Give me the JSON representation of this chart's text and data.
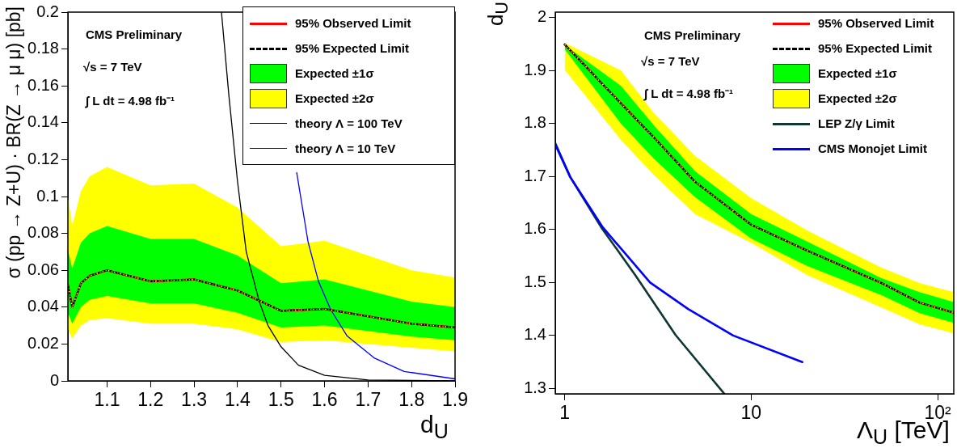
{
  "chart_data": [
    {
      "type": "line",
      "xlabel": "d$_{U}$",
      "ylabel": "σ (pp → Z+U) · BR(Z → μ μ) [pb]",
      "annotations": [
        "CMS Preliminary",
        "√s = 7 TeV",
        "∫ L dt = 4.98 fb⁻¹"
      ],
      "x": [
        1.01,
        1.02,
        1.04,
        1.06,
        1.1,
        1.2,
        1.3,
        1.4,
        1.5,
        1.6,
        1.8,
        1.9
      ],
      "xlim": [
        1.01,
        1.9
      ],
      "xticks": [
        1.1,
        1.2,
        1.3,
        1.4,
        1.5,
        1.6,
        1.7,
        1.8,
        1.9
      ],
      "ylim": [
        0,
        0.2
      ],
      "yticks": [
        0,
        0.02,
        0.04,
        0.06,
        0.08,
        0.1,
        0.12,
        0.14,
        0.16,
        0.18,
        0.2
      ],
      "grid": false,
      "legend": "top right",
      "marker": "none",
      "series": [
        {
          "name": "Expected ±2σ",
          "color": "#ffff00",
          "line_style": "dotted",
          "values": [
            0.052,
            0.04,
            0.053,
            0.057,
            0.06,
            0.054,
            0.055,
            0.049,
            0.038,
            0.039,
            0.031,
            0.029
          ],
          "lower": [
            0.028,
            0.023,
            0.03,
            0.033,
            0.034,
            0.031,
            0.031,
            0.028,
            0.021,
            0.022,
            0.018,
            0.016
          ],
          "upper": [
            0.1,
            0.084,
            0.103,
            0.111,
            0.116,
            0.106,
            0.107,
            0.094,
            0.073,
            0.076,
            0.06,
            0.056
          ]
        },
        {
          "name": "Expected ±1σ",
          "color": "#00ff00",
          "line_style": "dotted",
          "values": [
            0.052,
            0.04,
            0.053,
            0.057,
            0.06,
            0.054,
            0.055,
            0.049,
            0.038,
            0.039,
            0.031,
            0.029
          ],
          "lower": [
            0.037,
            0.031,
            0.04,
            0.044,
            0.046,
            0.042,
            0.042,
            0.037,
            0.029,
            0.03,
            0.024,
            0.022
          ],
          "upper": [
            0.071,
            0.061,
            0.075,
            0.08,
            0.084,
            0.077,
            0.077,
            0.068,
            0.053,
            0.055,
            0.043,
            0.04
          ]
        },
        {
          "name": "theory Λ = 100 TeV",
          "color": "#000000",
          "line_style": "solid",
          "x": [
            1.363,
            1.38,
            1.4,
            1.42,
            1.45,
            1.47,
            1.5,
            1.54,
            1.6,
            1.7,
            1.9
          ],
          "values": [
            0.2,
            0.155,
            0.108,
            0.07,
            0.043,
            0.03,
            0.0185,
            0.0085,
            0.003,
            0.0005,
            0
          ]
        },
        {
          "name": "theory Λ = 10 TeV",
          "color": "#0000ff",
          "line_style": "solid",
          "x": [
            1.536,
            1.562,
            1.586,
            1.614,
            1.652,
            1.715,
            1.783,
            1.9
          ],
          "values": [
            0.113,
            0.0755,
            0.054,
            0.0387,
            0.0243,
            0.0123,
            0.0051,
            0.0011
          ]
        },
        {
          "name": "95% Observed Limit",
          "color": "#ff0000",
          "line_style": "solid",
          "values": [
            0.052,
            0.04,
            0.053,
            0.057,
            0.06,
            0.054,
            0.055,
            0.049,
            0.038,
            0.039,
            0.031,
            0.029
          ]
        },
        {
          "name": "95% Expected Limit",
          "color": "#000000",
          "line_style": "dashed",
          "values": [
            0.052,
            0.04,
            0.053,
            0.057,
            0.06,
            0.054,
            0.055,
            0.049,
            0.038,
            0.039,
            0.031,
            0.029
          ]
        }
      ]
    },
    {
      "type": "line",
      "xlabel": "Λ$_{U}$ [TeV]",
      "ylabel": "d$_{U}$",
      "annotations": [
        "CMS Preliminary",
        "√s = 7 TeV",
        "∫ L dt = 4.98 fb⁻¹"
      ],
      "x": [
        1,
        2,
        3,
        5,
        10,
        20,
        50,
        80,
        122
      ],
      "log": "x",
      "xlim": [
        0.89,
        122
      ],
      "xticks": [
        1,
        10,
        {
          "value": 100,
          "label": "10²"
        }
      ],
      "ylim": [
        1.29,
        2.01
      ],
      "yticks": [
        1.3,
        1.4,
        1.5,
        1.6,
        1.7,
        1.8,
        1.9,
        2
      ],
      "grid": false,
      "legend": "top right",
      "marker": "none",
      "series": [
        {
          "name": "Expected ±2σ",
          "color": "#ffff00",
          "line_style": "dotted",
          "values": [
            1.949,
            1.838,
            1.774,
            1.69,
            1.609,
            1.56,
            1.499,
            1.462,
            1.443
          ],
          "lower": [
            1.901,
            1.769,
            1.703,
            1.629,
            1.575,
            1.514,
            1.453,
            1.421,
            1.404
          ],
          "upper": [
            1.952,
            1.9,
            1.82,
            1.739,
            1.659,
            1.598,
            1.528,
            1.499,
            1.482
          ]
        },
        {
          "name": "Expected ±1σ",
          "color": "#00ff00",
          "line_style": "dotted",
          "values": [
            1.949,
            1.838,
            1.774,
            1.69,
            1.609,
            1.56,
            1.499,
            1.462,
            1.443
          ],
          "lower": [
            1.94,
            1.8,
            1.734,
            1.661,
            1.583,
            1.531,
            1.476,
            1.442,
            1.424
          ],
          "upper": [
            1.948,
            1.871,
            1.797,
            1.71,
            1.629,
            1.577,
            1.508,
            1.482,
            1.463
          ]
        },
        {
          "name": "LEP Z/γ Limit",
          "color": "#0f3535",
          "line_style": "solid",
          "x": [
            0.89,
            1.07,
            1.57,
            2.39,
            3.93,
            7.14
          ],
          "values": [
            1.763,
            1.699,
            1.604,
            1.514,
            1.401,
            1.291
          ]
        },
        {
          "name": "CMS Monojet Limit",
          "color": "#0000ff",
          "line_style": "solid",
          "x": [
            0.89,
            1.07,
            1.6,
            2.87,
            4.59,
            8.0,
            18.8
          ],
          "values": [
            1.76,
            1.699,
            1.604,
            1.5,
            1.45,
            1.4,
            1.35
          ]
        },
        {
          "name": "95% Observed Limit",
          "color": "#ff0000",
          "line_style": "solid",
          "values": [
            1.949,
            1.838,
            1.774,
            1.69,
            1.609,
            1.56,
            1.499,
            1.462,
            1.443
          ]
        },
        {
          "name": "95% Expected Limit",
          "color": "#000000",
          "line_style": "dashed",
          "values": [
            1.949,
            1.838,
            1.774,
            1.69,
            1.609,
            1.56,
            1.499,
            1.462,
            1.443
          ]
        }
      ]
    }
  ]
}
